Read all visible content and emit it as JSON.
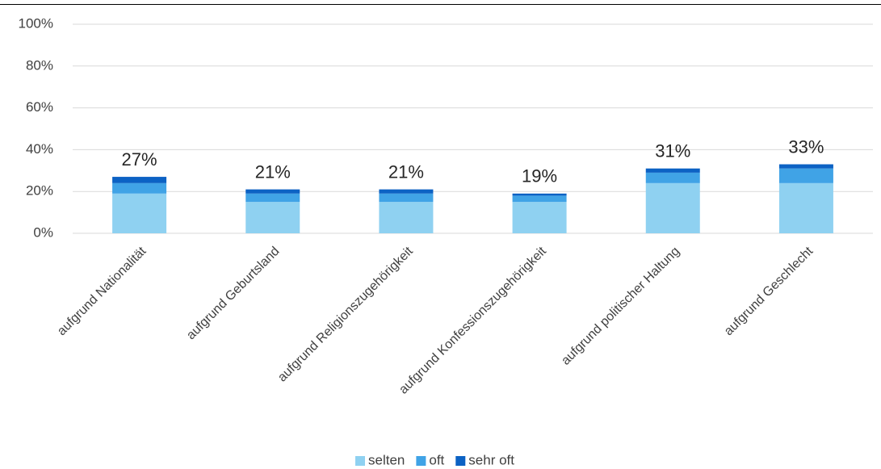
{
  "chart_data": {
    "type": "stacked-bar",
    "categories": [
      "aufgrund Nationalität",
      "aufgrund Geburtsland",
      "aufgrund Religionszugehörigkeit",
      "aufgrund Konfessionszugehörigkeit",
      "aufgrund politischer Haltung",
      "aufgrund Geschlecht"
    ],
    "series": [
      {
        "name": "selten",
        "color": "#8fd1f1",
        "values": [
          19,
          15,
          15,
          15,
          24,
          24
        ]
      },
      {
        "name": "oft",
        "color": "#40a3e6",
        "values": [
          5,
          4,
          4,
          3,
          5,
          7
        ]
      },
      {
        "name": "sehr oft",
        "color": "#0c62c4",
        "values": [
          3,
          2,
          2,
          1,
          2,
          2
        ]
      }
    ],
    "totals": {
      "values": [
        27,
        21,
        21,
        19,
        31,
        33
      ],
      "value_labels": [
        "27%",
        "21%",
        "21%",
        "19%",
        "31%",
        "33%"
      ]
    },
    "ylim": [
      0,
      100
    ],
    "yticks": [
      {
        "value": 0,
        "label": "0%"
      },
      {
        "value": 20,
        "label": "20%"
      },
      {
        "value": 40,
        "label": "40%"
      },
      {
        "value": 60,
        "label": "60%"
      },
      {
        "value": 80,
        "label": "80%"
      },
      {
        "value": 100,
        "label": "100%"
      }
    ],
    "grid": true,
    "legend": "bottom"
  }
}
